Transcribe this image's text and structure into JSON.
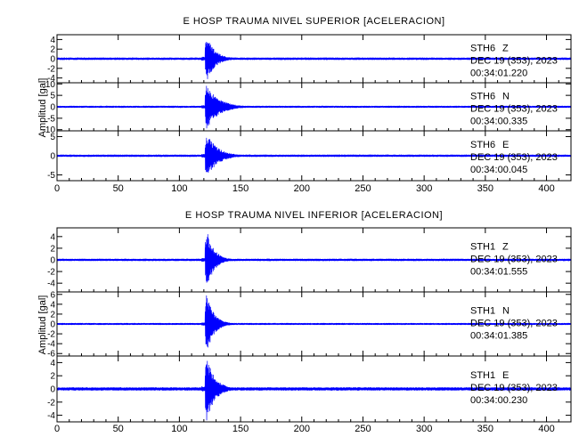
{
  "chart_data": [
    {
      "type": "line",
      "title": "E HOSP TRAUMA NIVEL SUPERIOR [ACELERACION]",
      "ylabel": "Amplitud [gal]",
      "xlim": [
        0,
        420
      ],
      "x_ticks": [
        "0",
        "50",
        "100",
        "150",
        "200",
        "250",
        "300",
        "350",
        "400"
      ],
      "series": [
        {
          "station": "STH6",
          "component": "Z",
          "date": "DEC 19 (353), 2023",
          "time": "00:34:01.220",
          "ylim": [
            -5,
            5
          ],
          "y_ticks": [
            "4",
            "2",
            "0",
            "-2",
            "-4"
          ],
          "onset_s": 121,
          "peak_amplitude_gal": 4.8,
          "noise_amplitude_gal": 0.25,
          "decay_s": 7,
          "color": "#0000ff"
        },
        {
          "station": "STH6",
          "component": "N",
          "date": "DEC 19 (353), 2023",
          "time": "00:34:00.335",
          "ylim": [
            -10.5,
            10.5
          ],
          "y_ticks": [
            "10",
            "5",
            "0",
            "-5",
            "-10"
          ],
          "onset_s": 121,
          "peak_amplitude_gal": 10,
          "noise_amplitude_gal": 0.45,
          "decay_s": 10,
          "color": "#0000ff"
        },
        {
          "station": "STH6",
          "component": "E",
          "date": "DEC 19 (353), 2023",
          "time": "00:34:00.045",
          "ylim": [
            -6.5,
            6.5
          ],
          "y_ticks": [
            "5",
            "0",
            "-5"
          ],
          "onset_s": 121,
          "peak_amplitude_gal": 6,
          "noise_amplitude_gal": 0.3,
          "decay_s": 9,
          "color": "#0000ff"
        }
      ]
    },
    {
      "type": "line",
      "title": "E HOSP TRAUMA NIVEL INFERIOR [ACELERACION]",
      "ylabel": "Amplitud [gal]",
      "xlim": [
        0,
        420
      ],
      "x_ticks": [
        "0",
        "50",
        "100",
        "150",
        "200",
        "250",
        "300",
        "350",
        "400"
      ],
      "series": [
        {
          "station": "STH1",
          "component": "Z",
          "date": "DEC 19 (353), 2023",
          "time": "00:34:01.555",
          "ylim": [
            -5.5,
            5.5
          ],
          "y_ticks": [
            "4",
            "2",
            "0",
            "-2",
            "-4"
          ],
          "onset_s": 121,
          "peak_amplitude_gal": 5.3,
          "noise_amplitude_gal": 0.2,
          "decay_s": 6,
          "color": "#0000ff"
        },
        {
          "station": "STH1",
          "component": "N",
          "date": "DEC 19 (353), 2023",
          "time": "00:34:01.385",
          "ylim": [
            -6.5,
            6.5
          ],
          "y_ticks": [
            "6",
            "4",
            "2",
            "0",
            "-2",
            "-4",
            "-6"
          ],
          "onset_s": 121,
          "peak_amplitude_gal": 6.2,
          "noise_amplitude_gal": 0.2,
          "decay_s": 6,
          "color": "#0000ff"
        },
        {
          "station": "STH1",
          "component": "E",
          "date": "DEC 19 (353), 2023",
          "time": "00:34:00.230",
          "ylim": [
            -5,
            5
          ],
          "y_ticks": [
            "4",
            "2",
            "0",
            "-2",
            "-4"
          ],
          "onset_s": 121,
          "peak_amplitude_gal": 4.9,
          "noise_amplitude_gal": 0.25,
          "decay_s": 7,
          "color": "#0000ff"
        }
      ]
    }
  ]
}
